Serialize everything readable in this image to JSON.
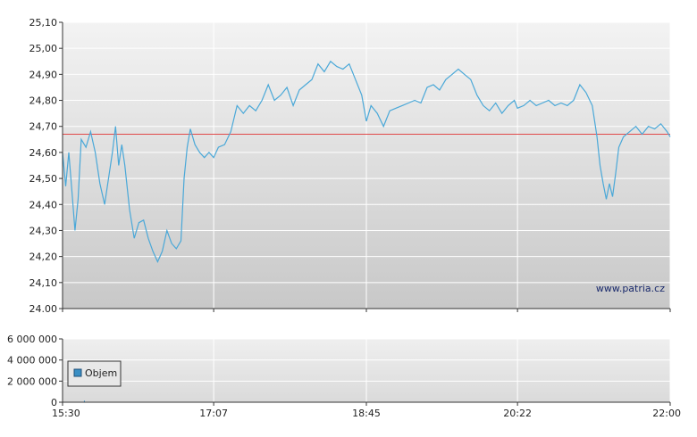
{
  "watermark": "www.patria.cz",
  "colors": {
    "price_line": "#4aa8d8",
    "reference_line": "#e04a4a",
    "volume_legend_box": "#3a8fc4",
    "axis": "#333333",
    "grid": "#ffffff"
  },
  "chart_data": [
    {
      "type": "line",
      "title": "",
      "xlabel": "",
      "ylabel": "",
      "x_ticks": [
        "15:30",
        "17:07",
        "18:45",
        "20:22",
        "22:00"
      ],
      "xlim": [
        "15:30",
        "22:00"
      ],
      "y_ticks": [
        "24.00",
        "24,10",
        "24,20",
        "24,30",
        "24,40",
        "24,50",
        "24,60",
        "24,70",
        "24,80",
        "24,90",
        "25,00",
        "25,10"
      ],
      "ylim": [
        24.0,
        25.1
      ],
      "grid": true,
      "reference_line": 24.67,
      "series": [
        {
          "values": [
            [
              "15:30",
              24.6
            ],
            [
              "15:32",
              24.47
            ],
            [
              "15:34",
              24.6
            ],
            [
              "15:36",
              24.45
            ],
            [
              "15:38",
              24.3
            ],
            [
              "15:40",
              24.42
            ],
            [
              "15:42",
              24.65
            ],
            [
              "15:45",
              24.62
            ],
            [
              "15:48",
              24.68
            ],
            [
              "15:51",
              24.6
            ],
            [
              "15:54",
              24.48
            ],
            [
              "15:57",
              24.4
            ],
            [
              "16:00",
              24.52
            ],
            [
              "16:02",
              24.6
            ],
            [
              "16:04",
              24.7
            ],
            [
              "16:06",
              24.55
            ],
            [
              "16:08",
              24.63
            ],
            [
              "16:10",
              24.55
            ],
            [
              "16:13",
              24.38
            ],
            [
              "16:16",
              24.27
            ],
            [
              "16:19",
              24.33
            ],
            [
              "16:22",
              24.34
            ],
            [
              "16:25",
              24.27
            ],
            [
              "16:28",
              24.22
            ],
            [
              "16:31",
              24.18
            ],
            [
              "16:34",
              24.22
            ],
            [
              "16:37",
              24.3
            ],
            [
              "16:40",
              24.25
            ],
            [
              "16:43",
              24.23
            ],
            [
              "16:46",
              24.26
            ],
            [
              "16:48",
              24.5
            ],
            [
              "16:50",
              24.62
            ],
            [
              "16:52",
              24.69
            ],
            [
              "16:55",
              24.63
            ],
            [
              "16:58",
              24.6
            ],
            [
              "17:01",
              24.58
            ],
            [
              "17:04",
              24.6
            ],
            [
              "17:07",
              24.58
            ],
            [
              "17:10",
              24.62
            ],
            [
              "17:14",
              24.63
            ],
            [
              "17:18",
              24.68
            ],
            [
              "17:22",
              24.78
            ],
            [
              "17:26",
              24.75
            ],
            [
              "17:30",
              24.78
            ],
            [
              "17:34",
              24.76
            ],
            [
              "17:38",
              24.8
            ],
            [
              "17:42",
              24.86
            ],
            [
              "17:46",
              24.8
            ],
            [
              "17:50",
              24.82
            ],
            [
              "17:54",
              24.85
            ],
            [
              "17:58",
              24.78
            ],
            [
              "18:02",
              24.84
            ],
            [
              "18:06",
              24.86
            ],
            [
              "18:10",
              24.88
            ],
            [
              "18:14",
              24.94
            ],
            [
              "18:18",
              24.91
            ],
            [
              "18:22",
              24.95
            ],
            [
              "18:26",
              24.93
            ],
            [
              "18:30",
              24.92
            ],
            [
              "18:34",
              24.94
            ],
            [
              "18:38",
              24.88
            ],
            [
              "18:42",
              24.82
            ],
            [
              "18:45",
              24.72
            ],
            [
              "18:48",
              24.78
            ],
            [
              "18:52",
              24.75
            ],
            [
              "18:56",
              24.7
            ],
            [
              "19:00",
              24.76
            ],
            [
              "19:04",
              24.77
            ],
            [
              "19:08",
              24.78
            ],
            [
              "19:12",
              24.79
            ],
            [
              "19:16",
              24.8
            ],
            [
              "19:20",
              24.79
            ],
            [
              "19:24",
              24.85
            ],
            [
              "19:28",
              24.86
            ],
            [
              "19:32",
              24.84
            ],
            [
              "19:36",
              24.88
            ],
            [
              "19:40",
              24.9
            ],
            [
              "19:44",
              24.92
            ],
            [
              "19:48",
              24.9
            ],
            [
              "19:52",
              24.88
            ],
            [
              "19:56",
              24.82
            ],
            [
              "20:00",
              24.78
            ],
            [
              "20:04",
              24.76
            ],
            [
              "20:08",
              24.79
            ],
            [
              "20:12",
              24.75
            ],
            [
              "20:16",
              24.78
            ],
            [
              "20:20",
              24.8
            ],
            [
              "20:22",
              24.77
            ],
            [
              "20:26",
              24.78
            ],
            [
              "20:30",
              24.8
            ],
            [
              "20:34",
              24.78
            ],
            [
              "20:38",
              24.79
            ],
            [
              "20:42",
              24.8
            ],
            [
              "20:46",
              24.78
            ],
            [
              "20:50",
              24.79
            ],
            [
              "20:54",
              24.78
            ],
            [
              "20:58",
              24.8
            ],
            [
              "21:02",
              24.86
            ],
            [
              "21:06",
              24.83
            ],
            [
              "21:10",
              24.78
            ],
            [
              "21:13",
              24.66
            ],
            [
              "21:15",
              24.55
            ],
            [
              "21:17",
              24.48
            ],
            [
              "21:19",
              24.42
            ],
            [
              "21:21",
              24.48
            ],
            [
              "21:23",
              24.43
            ],
            [
              "21:25",
              24.52
            ],
            [
              "21:27",
              24.62
            ],
            [
              "21:30",
              24.66
            ],
            [
              "21:34",
              24.68
            ],
            [
              "21:38",
              24.7
            ],
            [
              "21:42",
              24.67
            ],
            [
              "21:46",
              24.7
            ],
            [
              "21:50",
              24.69
            ],
            [
              "21:54",
              24.71
            ],
            [
              "21:58",
              24.68
            ],
            [
              "22:00",
              24.66
            ]
          ]
        }
      ]
    },
    {
      "type": "bar",
      "title": "",
      "xlabel": "",
      "ylabel": "",
      "x_ticks": [
        "15:30",
        "17:07",
        "18:45",
        "20:22",
        "22:00"
      ],
      "y_ticks": [
        "0",
        "2 000 000",
        "4 000 000",
        "6 000 000"
      ],
      "ylim": [
        0,
        6000000
      ],
      "grid": true,
      "legend": {
        "label": "Objem",
        "placement": "bottom-left"
      },
      "series": [
        {
          "name": "Objem",
          "values": [
            [
              "15:44",
              150000
            ]
          ]
        }
      ]
    }
  ]
}
